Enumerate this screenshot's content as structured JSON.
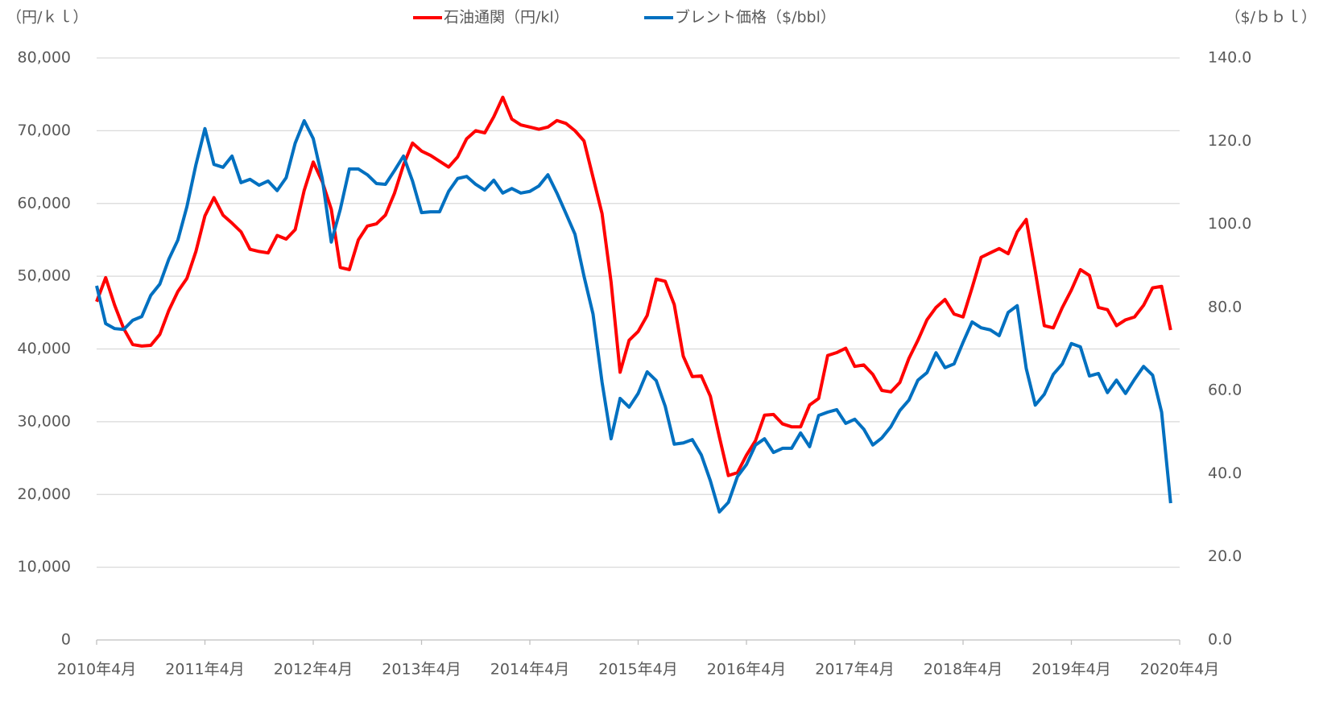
{
  "chart_data": {
    "type": "line",
    "y_label": "（円/ｋｌ）",
    "y2_label": "（$/ｂｂｌ）",
    "categories": [
      "2010年4月",
      null,
      null,
      null,
      null,
      null,
      null,
      null,
      null,
      null,
      null,
      null,
      "2011年4月",
      null,
      null,
      null,
      null,
      null,
      null,
      null,
      null,
      null,
      null,
      null,
      "2012年4月",
      null,
      null,
      null,
      null,
      null,
      null,
      null,
      null,
      null,
      null,
      null,
      "2013年4月",
      null,
      null,
      null,
      null,
      null,
      null,
      null,
      null,
      null,
      null,
      null,
      "2014年4月",
      null,
      null,
      null,
      null,
      null,
      null,
      null,
      null,
      null,
      null,
      null,
      "2015年4月",
      null,
      null,
      null,
      null,
      null,
      null,
      null,
      null,
      null,
      null,
      null,
      "2016年4月",
      null,
      null,
      null,
      null,
      null,
      null,
      null,
      null,
      null,
      null,
      null,
      "2017年4月",
      null,
      null,
      null,
      null,
      null,
      null,
      null,
      null,
      null,
      null,
      null,
      "2018年4月",
      null,
      null,
      null,
      null,
      null,
      null,
      null,
      null,
      null,
      null,
      null,
      "2019年4月",
      null,
      null,
      null,
      null,
      null,
      null,
      null,
      null,
      null,
      null,
      null,
      "2020年4月"
    ],
    "series": [
      {
        "name": "石油通関（円/kl）",
        "color": "#ff0000",
        "axis": "y",
        "values": [
          46500,
          49800,
          46000,
          42800,
          40600,
          40400,
          40500,
          42000,
          45300,
          47900,
          49700,
          53400,
          58300,
          60800,
          58400,
          57300,
          56100,
          53700,
          53400,
          53200,
          55600,
          55100,
          56400,
          61800,
          65700,
          63000,
          59200,
          51200,
          50900,
          55000,
          56900,
          57200,
          58400,
          61400,
          65300,
          68300,
          67200,
          66600,
          65800,
          65000,
          66400,
          68900,
          70000,
          69700,
          71900,
          74600,
          71600,
          70800,
          70500,
          70200,
          70500,
          71400,
          71000,
          70000,
          68600,
          63600,
          58600,
          49200,
          36800,
          41200,
          42400,
          44600,
          49600,
          49300,
          46100,
          39000,
          36200,
          36300,
          33500,
          27900,
          22600,
          23000,
          25400,
          27400,
          30900,
          31000,
          29700,
          29300,
          29300,
          32300,
          33200,
          39100,
          39500,
          40100,
          37600,
          37800,
          36500,
          34300,
          34100,
          35400,
          38700,
          41200,
          44000,
          45700,
          46800,
          44800,
          44400,
          48400,
          52600,
          53200,
          53800,
          53100,
          56100,
          57800,
          50700,
          43200,
          42900,
          45700,
          48100,
          50900,
          50100,
          45700,
          45400,
          43200,
          44000,
          44400,
          46000,
          48400,
          48600,
          42600,
          null
        ]
      },
      {
        "name": "ブレント価格（$/bbl）",
        "color": "#0070c0",
        "axis": "y2",
        "values": [
          85.2,
          76.1,
          74.9,
          74.7,
          76.9,
          77.8,
          82.9,
          85.6,
          91.6,
          96.2,
          104.2,
          114.3,
          123.0,
          114.4,
          113.7,
          116.4,
          110.0,
          110.8,
          109.4,
          110.4,
          108.1,
          111.2,
          119.5,
          124.9,
          120.6,
          111.0,
          95.7,
          103.6,
          113.3,
          113.3,
          111.9,
          109.8,
          109.6,
          112.9,
          116.4,
          110.4,
          102.8,
          103.0,
          103.0,
          107.9,
          111.0,
          111.5,
          109.6,
          108.2,
          110.6,
          107.5,
          108.6,
          107.5,
          107.9,
          109.2,
          111.9,
          107.5,
          102.6,
          97.6,
          87.5,
          78.4,
          62.0,
          48.4,
          58.1,
          56.0,
          59.3,
          64.5,
          62.4,
          56.2,
          47.1,
          47.4,
          48.2,
          44.5,
          38.3,
          30.8,
          33.1,
          39.3,
          42.2,
          46.9,
          48.4,
          45.1,
          46.1,
          46.1,
          49.8,
          46.5,
          54.0,
          54.8,
          55.4,
          52.1,
          53.1,
          50.7,
          46.9,
          48.6,
          51.3,
          55.2,
          57.7,
          62.5,
          64.3,
          69.1,
          65.5,
          66.4,
          71.6,
          76.5,
          75.1,
          74.6,
          73.2,
          78.8,
          80.4,
          65.3,
          56.5,
          59.1,
          63.9,
          66.4,
          71.3,
          70.5,
          63.5,
          64.1,
          59.5,
          62.5,
          59.3,
          62.7,
          65.8,
          63.7,
          54.8,
          32.9,
          null
        ]
      }
    ],
    "ylim": [
      0,
      80000
    ],
    "yticks": [
      0,
      {
        "value": 10000,
        "label": "10,000"
      },
      {
        "value": 20000,
        "label": "20,000"
      },
      {
        "value": 30000,
        "label": "30,000"
      },
      {
        "value": 40000,
        "label": "40,000"
      },
      {
        "value": 50000,
        "label": "50,000"
      },
      {
        "value": 60000,
        "label": "60,000"
      },
      {
        "value": 70000,
        "label": "70,000"
      },
      {
        "value": 80000,
        "label": "80,000"
      }
    ],
    "y2lim": [
      0,
      140
    ],
    "y2ticks": [
      {
        "value": 0,
        "label": "0.0"
      },
      {
        "value": 20,
        "label": "20.0"
      },
      {
        "value": 40,
        "label": "40.0"
      },
      {
        "value": 60,
        "label": "60.0"
      },
      {
        "value": 80,
        "label": "80.0"
      },
      {
        "value": 100,
        "label": "100.0"
      },
      {
        "value": 120,
        "label": "120.0"
      },
      {
        "value": 140,
        "label": "140.0"
      }
    ],
    "grid": true,
    "legend": "top"
  }
}
